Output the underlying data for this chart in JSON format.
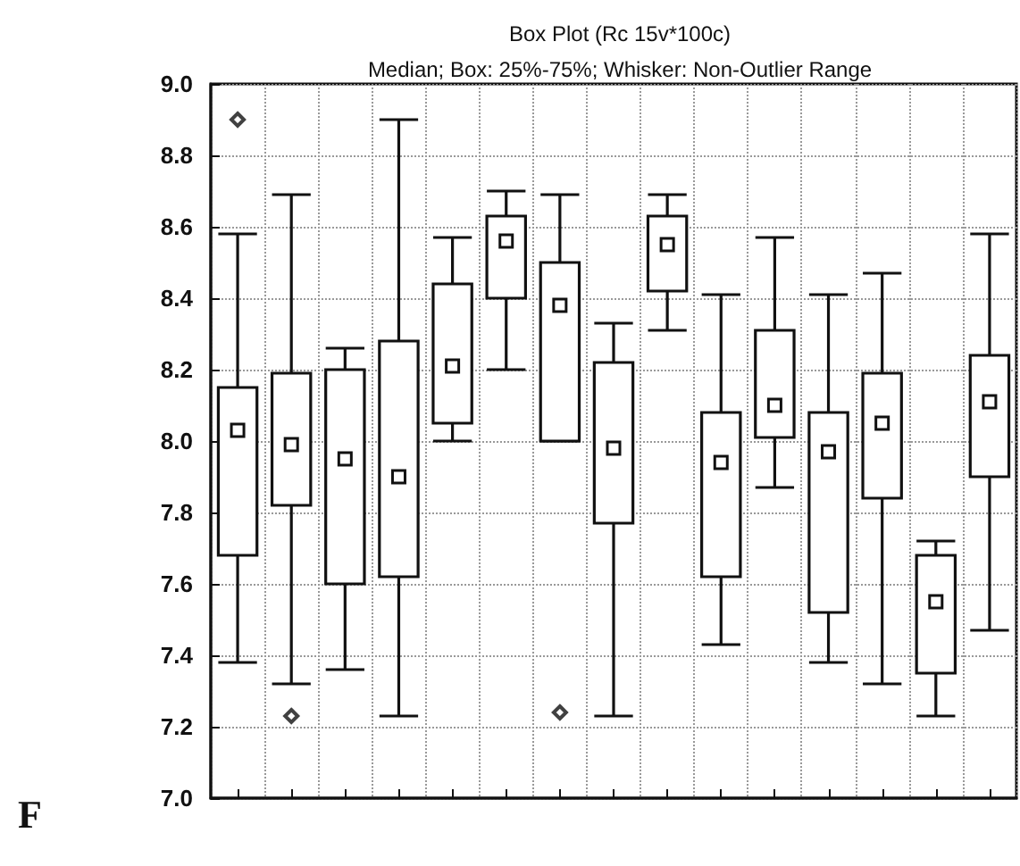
{
  "chart_data": {
    "type": "box",
    "title": "Box Plot (Rc 15v*100c)",
    "subtitle": "Median; Box: 25%-75%; Whisker: Non-Outlier Range",
    "annotations": [
      "F"
    ],
    "categories": [
      null,
      null,
      null,
      null,
      null,
      null,
      null,
      null,
      null,
      null,
      null,
      null,
      null,
      null,
      null
    ],
    "boxes": [
      {
        "low": 7.38,
        "q1": 7.68,
        "median": 8.03,
        "q3": 8.15,
        "high": 8.58,
        "outliers": [
          8.9
        ]
      },
      {
        "low": 7.32,
        "q1": 7.82,
        "median": 7.99,
        "q3": 8.19,
        "high": 8.69,
        "outliers": [
          7.23
        ]
      },
      {
        "low": 7.36,
        "q1": 7.6,
        "median": 7.95,
        "q3": 8.2,
        "high": 8.26
      },
      {
        "low": 7.23,
        "q1": 7.62,
        "median": 7.9,
        "q3": 8.28,
        "high": 8.9
      },
      {
        "low": 8.0,
        "q1": 8.05,
        "median": 8.21,
        "q3": 8.44,
        "high": 8.57
      },
      {
        "low": 8.2,
        "q1": 8.4,
        "median": 8.56,
        "q3": 8.63,
        "high": 8.7
      },
      {
        "low": 8.0,
        "q1": 8.0,
        "median": 8.38,
        "q3": 8.5,
        "high": 8.69,
        "outliers": [
          7.24
        ]
      },
      {
        "low": 7.23,
        "q1": 7.77,
        "median": 7.98,
        "q3": 8.22,
        "high": 8.33
      },
      {
        "low": 8.31,
        "q1": 8.42,
        "median": 8.55,
        "q3": 8.63,
        "high": 8.69
      },
      {
        "low": 7.43,
        "q1": 7.62,
        "median": 7.94,
        "q3": 8.08,
        "high": 8.41
      },
      {
        "low": 7.87,
        "q1": 8.01,
        "median": 8.1,
        "q3": 8.31,
        "high": 8.57
      },
      {
        "low": 7.38,
        "q1": 7.52,
        "median": 7.97,
        "q3": 8.08,
        "high": 8.41
      },
      {
        "low": 7.32,
        "q1": 7.84,
        "median": 8.05,
        "q3": 8.19,
        "high": 8.47
      },
      {
        "low": 7.23,
        "q1": 7.35,
        "median": 7.55,
        "q3": 7.68,
        "high": 7.72
      },
      {
        "low": 7.47,
        "q1": 7.9,
        "median": 8.11,
        "q3": 8.24,
        "high": 8.58
      }
    ],
    "ylim": [
      7.0,
      9.0
    ],
    "yticks": [
      {
        "value": 7,
        "label": "7.0"
      },
      7.2,
      7.4,
      7.6,
      7.8,
      {
        "value": 8,
        "label": "8.0"
      },
      8.2,
      8.4,
      8.6,
      8.8,
      {
        "value": 9,
        "label": "9.0"
      }
    ],
    "tick_labels": "y",
    "grid": true,
    "marker": "square"
  }
}
